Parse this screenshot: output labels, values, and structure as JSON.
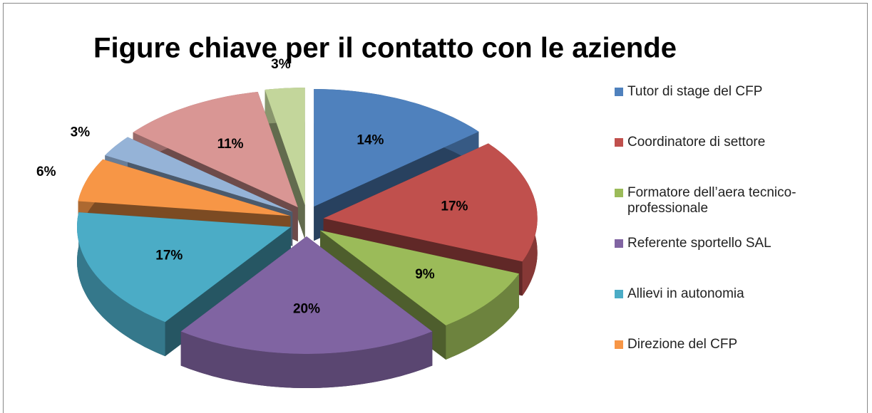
{
  "chart_data": {
    "type": "pie",
    "title": "Figure chiave per il contatto con le aziende",
    "categories": [
      "Tutor di stage del CFP",
      "Coordinatore di settore",
      "Formatore dell’aera tecnico-professionale",
      "Referente sportello SAL",
      "Allievi in autonomia",
      "Direzione del CFP",
      null,
      null,
      null
    ],
    "values": [
      14,
      17,
      9,
      20,
      17,
      6,
      3,
      11,
      3
    ],
    "value_labels": [
      "14%",
      "17%",
      "9%",
      "20%",
      "17%",
      "6%",
      "3%",
      "11%",
      "3%"
    ],
    "colors": [
      "#4F81BD",
      "#C0504D",
      "#9BBB59",
      "#8064A2",
      "#4BACC6",
      "#F79646",
      "#95B3D7",
      "#D99694",
      "#C3D69B"
    ],
    "legend": "right"
  }
}
